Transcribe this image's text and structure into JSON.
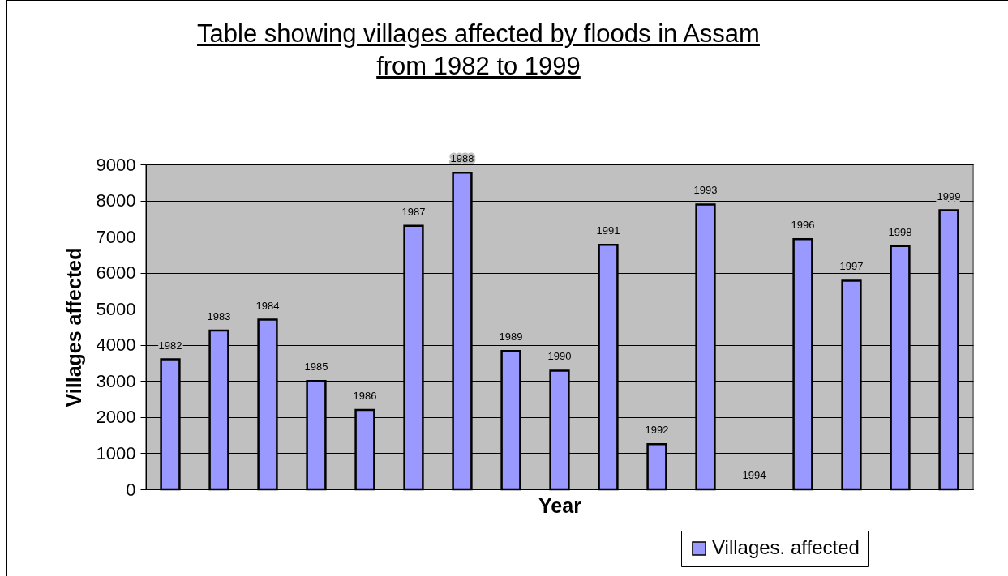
{
  "chart_data": {
    "type": "bar",
    "title": "Table showing villages affected by floods in Assam from 1982 to 1999",
    "xlabel": "Year",
    "ylabel": "Villages affected",
    "categories": [
      "1982",
      "1983",
      "1984",
      "1985",
      "1986",
      "1987",
      "1988",
      "1989",
      "1990",
      "1991",
      "1992",
      "1993",
      "1994",
      "1996",
      "1997",
      "1998",
      "1999"
    ],
    "series": [
      {
        "name": "Villages. affected",
        "color": "#9999ff",
        "values": [
          3600,
          4400,
          4700,
          3000,
          2200,
          7300,
          8770,
          3830,
          3290,
          6770,
          1250,
          7890,
          0,
          6930,
          5780,
          6740,
          7730
        ]
      }
    ],
    "ylim": [
      0,
      9000
    ],
    "yticks": [
      0,
      1000,
      2000,
      3000,
      4000,
      5000,
      6000,
      7000,
      8000,
      9000
    ],
    "grid": "y",
    "legend": "bottom right",
    "tick_labels": "y"
  }
}
